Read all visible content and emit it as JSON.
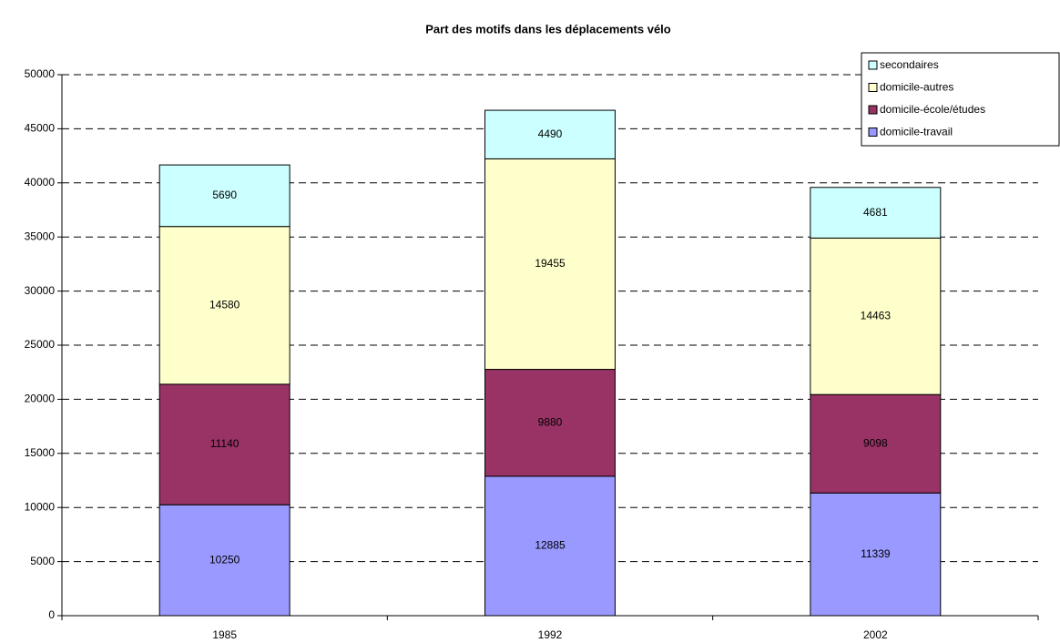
{
  "chart_data": {
    "type": "stacked_bar",
    "title": "Part des motifs dans les déplacements vélo",
    "categories": [
      "1985",
      "1992",
      "2002"
    ],
    "series": [
      {
        "name": "domicile-travail",
        "color": "#9999ff",
        "values": [
          10250,
          12885,
          11339
        ]
      },
      {
        "name": "domicile-école/études",
        "color": "#993366",
        "values": [
          11140,
          9880,
          9098
        ]
      },
      {
        "name": "domicile-autres",
        "color": "#ffffcc",
        "values": [
          14580,
          19455,
          14463
        ]
      },
      {
        "name": "secondaires",
        "color": "#ccffff",
        "values": [
          5690,
          4490,
          4681
        ]
      }
    ],
    "ylim": [
      0,
      50000
    ],
    "yticks": [
      0,
      5000,
      10000,
      15000,
      20000,
      25000,
      30000,
      35000,
      40000,
      45000,
      50000
    ],
    "grid": true,
    "legend": "top-right"
  }
}
